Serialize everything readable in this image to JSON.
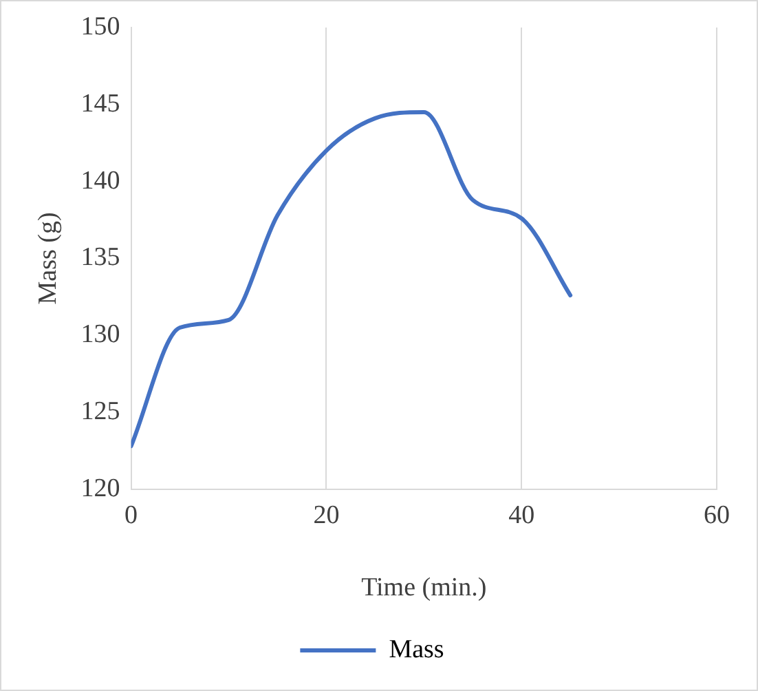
{
  "chart_data": {
    "type": "line",
    "xlabel": "Time (min.)",
    "ylabel": "Mass (g)",
    "x": [
      0,
      5,
      10,
      15,
      20,
      25,
      30,
      35,
      40,
      45
    ],
    "series": [
      {
        "name": "Mass",
        "color": "#4472c4",
        "values": [
          122.8,
          130.5,
          131,
          137.8,
          142,
          144.1,
          144.5,
          138.8,
          137.6,
          132.6
        ]
      }
    ],
    "xlim": [
      0,
      60
    ],
    "xticks": [
      0,
      20,
      40,
      60
    ],
    "ylim": [
      120,
      150
    ],
    "yticks": [
      120,
      125,
      130,
      135,
      140,
      145,
      150
    ],
    "grid": "x",
    "legend": "bottom",
    "marker": "none",
    "line_style": "solid"
  }
}
